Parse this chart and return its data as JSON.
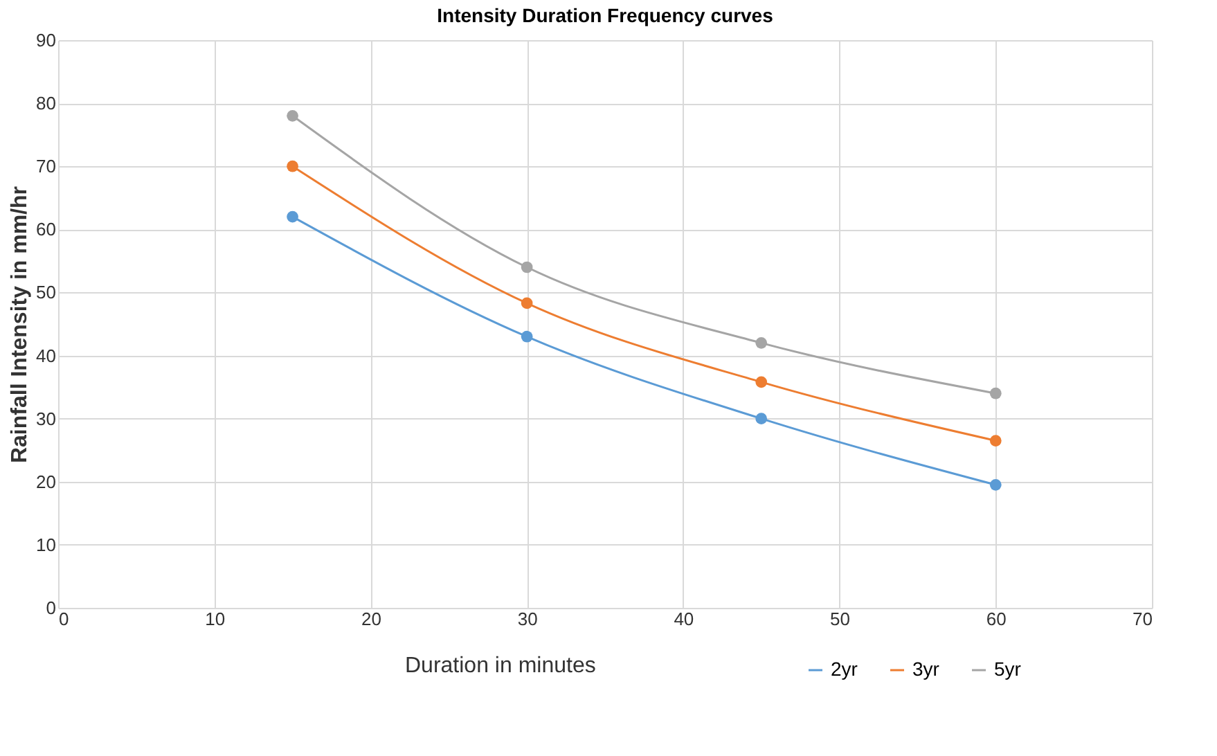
{
  "chart_data": {
    "type": "line",
    "title": "Intensity Duration Frequency curves",
    "xlabel": "Duration in minutes",
    "ylabel": "Rainfall Intensity in mm/hr",
    "x": [
      15,
      30,
      45,
      60
    ],
    "series": [
      {
        "name": "2yr",
        "color": "#5b9bd5",
        "values": [
          62,
          43,
          30,
          19.5
        ]
      },
      {
        "name": "3yr",
        "color": "#ed7d31",
        "values": [
          70,
          48.3,
          35.8,
          26.5
        ]
      },
      {
        "name": "5yr",
        "color": "#a5a5a5",
        "values": [
          78,
          54,
          42,
          34
        ]
      }
    ],
    "xlim": [
      0,
      70
    ],
    "xticks": [
      0,
      10,
      20,
      30,
      40,
      50,
      60,
      70
    ],
    "ylim": [
      0,
      90
    ],
    "yticks": [
      0,
      10,
      20,
      30,
      40,
      50,
      60,
      70,
      80,
      90
    ],
    "grid": true,
    "legend": "bottom right",
    "marker": "circle",
    "line_style": "solid"
  }
}
